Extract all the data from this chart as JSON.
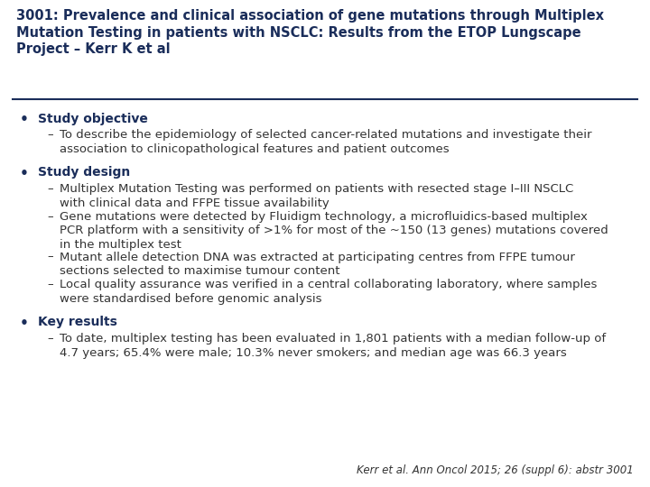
{
  "title": "3001: Prevalence and clinical association of gene mutations through Multiplex\nMutation Testing in patients with NSCLC: Results from the ETOP Lungscape\nProject – Kerr K et al",
  "title_color": "#1a2d5a",
  "bg_color": "#ffffff",
  "separator_color": "#1a2d5a",
  "body_color": "#333333",
  "section1_header": "Study objective",
  "section1_items": [
    "To describe the epidemiology of selected cancer-related mutations and investigate their\nassociation to clinicopathological features and patient outcomes"
  ],
  "section2_header": "Study design",
  "section2_items": [
    "Multiplex Mutation Testing was performed on patients with resected stage I–III NSCLC\nwith clinical data and FFPE tissue availability",
    "Gene mutations were detected by Fluidigm technology, a microfluidics-based multiplex\nPCR platform with a sensitivity of >1% for most of the ~150 (13 genes) mutations covered\nin the multiplex test",
    "Mutant allele detection DNA was extracted at participating centres from FFPE tumour\nsections selected to maximise tumour content",
    "Local quality assurance was verified in a central collaborating laboratory, where samples\nwere standardised before genomic analysis"
  ],
  "section3_header": "Key results",
  "section3_items": [
    "To date, multiplex testing has been evaluated in 1,801 patients with a median follow-up of\n4.7 years; 65.4% were male; 10.3% never smokers; and median age was 66.3 years"
  ],
  "footnote": "Kerr et al. Ann Oncol 2015; 26 (suppl 6): abstr 3001",
  "title_fontsize": 10.5,
  "section_header_fontsize": 10.0,
  "body_fontsize": 9.5,
  "footnote_fontsize": 8.5
}
